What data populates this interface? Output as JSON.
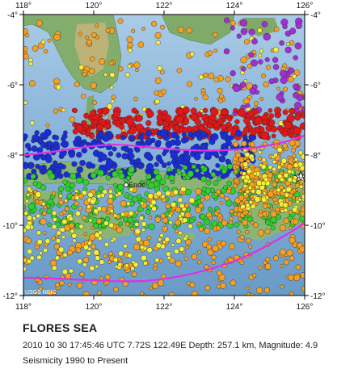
{
  "map": {
    "lon_ticks": [
      "118°",
      "120°",
      "122°",
      "124°",
      "126°"
    ],
    "lat_ticks": [
      "-4°",
      "-6°",
      "-8°",
      "-10°",
      "-12°"
    ],
    "extent": {
      "lon": [
        118,
        126
      ],
      "lat": [
        -12,
        -4
      ]
    },
    "place_labels": {
      "ende": "Ende",
      "di": "DI"
    },
    "credit": "USGS NEIC",
    "colors": {
      "land": "#7fae6a",
      "sea_shallow": "#b9d6ea",
      "sea_deep": "#6f9fc8",
      "plate_boundary": "#e030e0",
      "quake_red": "#e01818",
      "quake_blue": "#1a2ed8",
      "quake_green": "#2fd02f",
      "quake_yellow": "#f5f03a",
      "quake_orange": "#f5a020",
      "quake_purple": "#a030d0"
    }
  },
  "title": "FLORES SEA",
  "event": {
    "datetime": "2010 10 30 17:45:46 UTC",
    "location": "7.72S 122.49E",
    "depth": "Depth: 257.1 km,",
    "magnitude": "Magnitude: 4.9"
  },
  "seismicity_label": "Seismicity 1990 to Present"
}
